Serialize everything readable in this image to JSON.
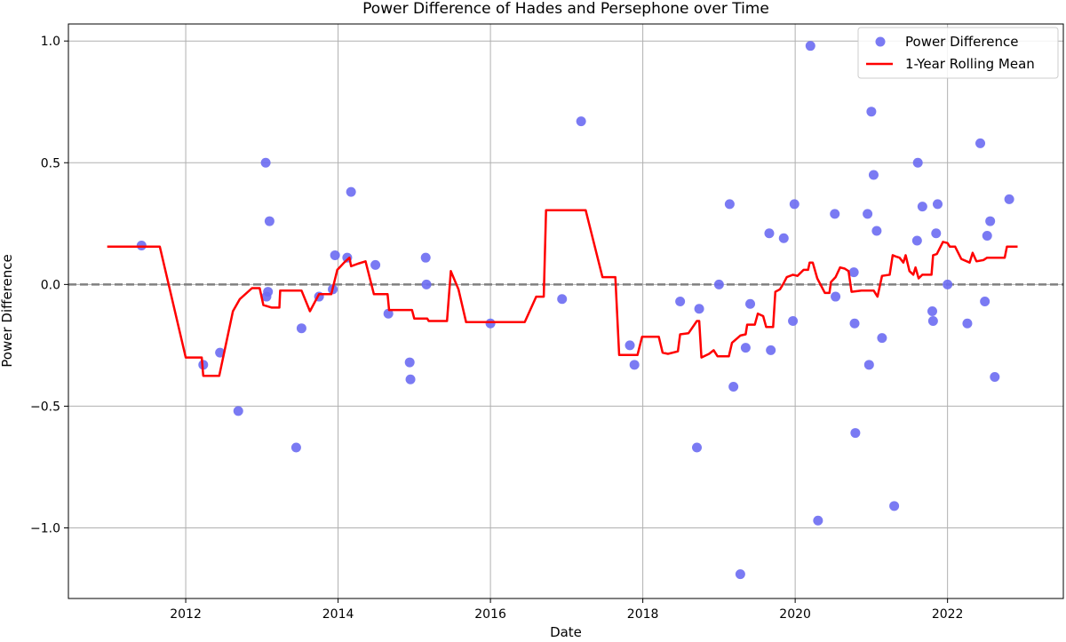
{
  "chart_data": {
    "type": "scatter",
    "title": "Power Difference of Hades and Persephone over Time",
    "xlabel": "Date",
    "ylabel": "Power Difference",
    "xlim": [
      2010.46,
      2023.52
    ],
    "ylim": [
      -1.29,
      1.07
    ],
    "x_ticks": [
      2012,
      2014,
      2016,
      2018,
      2020,
      2022
    ],
    "x_tick_labels": [
      "2012",
      "2014",
      "2016",
      "2018",
      "2020",
      "2022"
    ],
    "y_ticks": [
      -1.0,
      -0.5,
      0.0,
      0.5,
      1.0
    ],
    "y_tick_labels": [
      "−1.0",
      "−0.5",
      "0.0",
      "0.5",
      "1.0"
    ],
    "grid": true,
    "reference_line": {
      "y": 0.0,
      "style": "dashed",
      "color": "#808080"
    },
    "legend": {
      "placement": "top-right"
    },
    "series": [
      {
        "name": "Power Difference",
        "kind": "scatter",
        "color": "#6b6bf2",
        "points": [
          {
            "x": 2011.42,
            "y": 0.16
          },
          {
            "x": 2012.23,
            "y": -0.33
          },
          {
            "x": 2012.45,
            "y": -0.28
          },
          {
            "x": 2012.69,
            "y": -0.52
          },
          {
            "x": 2013.05,
            "y": 0.5
          },
          {
            "x": 2013.06,
            "y": -0.05
          },
          {
            "x": 2013.08,
            "y": -0.03
          },
          {
            "x": 2013.1,
            "y": 0.26
          },
          {
            "x": 2013.45,
            "y": -0.67
          },
          {
            "x": 2013.52,
            "y": -0.18
          },
          {
            "x": 2013.75,
            "y": -0.05
          },
          {
            "x": 2013.93,
            "y": -0.02
          },
          {
            "x": 2013.96,
            "y": 0.12
          },
          {
            "x": 2014.12,
            "y": 0.11
          },
          {
            "x": 2014.17,
            "y": 0.38
          },
          {
            "x": 2014.49,
            "y": 0.08
          },
          {
            "x": 2014.66,
            "y": -0.12
          },
          {
            "x": 2014.94,
            "y": -0.32
          },
          {
            "x": 2014.95,
            "y": -0.39
          },
          {
            "x": 2015.15,
            "y": 0.11
          },
          {
            "x": 2015.16,
            "y": 0.0
          },
          {
            "x": 2016.0,
            "y": -0.16
          },
          {
            "x": 2016.94,
            "y": -0.06
          },
          {
            "x": 2017.19,
            "y": 0.67
          },
          {
            "x": 2017.83,
            "y": -0.25
          },
          {
            "x": 2017.89,
            "y": -0.33
          },
          {
            "x": 2018.49,
            "y": -0.07
          },
          {
            "x": 2018.71,
            "y": -0.67
          },
          {
            "x": 2018.74,
            "y": -0.1
          },
          {
            "x": 2019.0,
            "y": 0.0
          },
          {
            "x": 2019.14,
            "y": 0.33
          },
          {
            "x": 2019.19,
            "y": -0.42
          },
          {
            "x": 2019.28,
            "y": -1.19
          },
          {
            "x": 2019.35,
            "y": -0.26
          },
          {
            "x": 2019.41,
            "y": -0.08
          },
          {
            "x": 2019.66,
            "y": 0.21
          },
          {
            "x": 2019.68,
            "y": -0.27
          },
          {
            "x": 2019.85,
            "y": 0.19
          },
          {
            "x": 2019.97,
            "y": -0.15
          },
          {
            "x": 2019.99,
            "y": 0.33
          },
          {
            "x": 2020.2,
            "y": 0.98
          },
          {
            "x": 2020.3,
            "y": -0.97
          },
          {
            "x": 2020.52,
            "y": 0.29
          },
          {
            "x": 2020.53,
            "y": -0.05
          },
          {
            "x": 2020.77,
            "y": 0.05
          },
          {
            "x": 2020.78,
            "y": -0.16
          },
          {
            "x": 2020.79,
            "y": -0.61
          },
          {
            "x": 2020.95,
            "y": 0.29
          },
          {
            "x": 2020.97,
            "y": -0.33
          },
          {
            "x": 2021.0,
            "y": 0.71
          },
          {
            "x": 2021.03,
            "y": 0.45
          },
          {
            "x": 2021.07,
            "y": 0.22
          },
          {
            "x": 2021.14,
            "y": -0.22
          },
          {
            "x": 2021.3,
            "y": -0.91
          },
          {
            "x": 2021.6,
            "y": 0.18
          },
          {
            "x": 2021.61,
            "y": 0.5
          },
          {
            "x": 2021.67,
            "y": 0.32
          },
          {
            "x": 2021.8,
            "y": -0.11
          },
          {
            "x": 2021.81,
            "y": -0.15
          },
          {
            "x": 2021.85,
            "y": 0.21
          },
          {
            "x": 2021.87,
            "y": 0.33
          },
          {
            "x": 2022.0,
            "y": 0.0
          },
          {
            "x": 2022.26,
            "y": -0.16
          },
          {
            "x": 2022.43,
            "y": 0.58
          },
          {
            "x": 2022.49,
            "y": -0.07
          },
          {
            "x": 2022.52,
            "y": 0.2
          },
          {
            "x": 2022.56,
            "y": 0.26
          },
          {
            "x": 2022.62,
            "y": -0.38
          },
          {
            "x": 2022.81,
            "y": 0.35
          }
        ]
      },
      {
        "name": "1-Year Rolling Mean",
        "kind": "line",
        "color": "#ff0000",
        "points": [
          {
            "x": 2010.97,
            "y": 0.155
          },
          {
            "x": 2011.66,
            "y": 0.155
          },
          {
            "x": 2012.0,
            "y": -0.3
          },
          {
            "x": 2012.21,
            "y": -0.3
          },
          {
            "x": 2012.23,
            "y": -0.375
          },
          {
            "x": 2012.44,
            "y": -0.375
          },
          {
            "x": 2012.62,
            "y": -0.11
          },
          {
            "x": 2012.71,
            "y": -0.06
          },
          {
            "x": 2012.87,
            "y": -0.015
          },
          {
            "x": 2012.97,
            "y": -0.015
          },
          {
            "x": 2013.02,
            "y": -0.085
          },
          {
            "x": 2013.13,
            "y": -0.095
          },
          {
            "x": 2013.23,
            "y": -0.095
          },
          {
            "x": 2013.24,
            "y": -0.025
          },
          {
            "x": 2013.52,
            "y": -0.025
          },
          {
            "x": 2013.63,
            "y": -0.11
          },
          {
            "x": 2013.75,
            "y": -0.04
          },
          {
            "x": 2013.91,
            "y": -0.04
          },
          {
            "x": 2013.99,
            "y": 0.06
          },
          {
            "x": 2014.08,
            "y": 0.09
          },
          {
            "x": 2014.15,
            "y": 0.11
          },
          {
            "x": 2014.17,
            "y": 0.075
          },
          {
            "x": 2014.26,
            "y": 0.085
          },
          {
            "x": 2014.36,
            "y": 0.095
          },
          {
            "x": 2014.47,
            "y": -0.04
          },
          {
            "x": 2014.65,
            "y": -0.04
          },
          {
            "x": 2014.67,
            "y": -0.105
          },
          {
            "x": 2014.97,
            "y": -0.105
          },
          {
            "x": 2015.0,
            "y": -0.14
          },
          {
            "x": 2015.17,
            "y": -0.14
          },
          {
            "x": 2015.19,
            "y": -0.15
          },
          {
            "x": 2015.43,
            "y": -0.15
          },
          {
            "x": 2015.48,
            "y": 0.055
          },
          {
            "x": 2015.58,
            "y": -0.02
          },
          {
            "x": 2015.68,
            "y": -0.155
          },
          {
            "x": 2016.45,
            "y": -0.155
          },
          {
            "x": 2016.6,
            "y": -0.05
          },
          {
            "x": 2016.7,
            "y": -0.05
          },
          {
            "x": 2016.73,
            "y": 0.305
          },
          {
            "x": 2017.25,
            "y": 0.305
          },
          {
            "x": 2017.47,
            "y": 0.03
          },
          {
            "x": 2017.64,
            "y": 0.03
          },
          {
            "x": 2017.69,
            "y": -0.29
          },
          {
            "x": 2017.93,
            "y": -0.29
          },
          {
            "x": 2017.99,
            "y": -0.215
          },
          {
            "x": 2018.21,
            "y": -0.215
          },
          {
            "x": 2018.26,
            "y": -0.28
          },
          {
            "x": 2018.33,
            "y": -0.285
          },
          {
            "x": 2018.46,
            "y": -0.275
          },
          {
            "x": 2018.49,
            "y": -0.205
          },
          {
            "x": 2018.6,
            "y": -0.2
          },
          {
            "x": 2018.71,
            "y": -0.15
          },
          {
            "x": 2018.74,
            "y": -0.15
          },
          {
            "x": 2018.77,
            "y": -0.3
          },
          {
            "x": 2018.87,
            "y": -0.285
          },
          {
            "x": 2018.93,
            "y": -0.27
          },
          {
            "x": 2018.98,
            "y": -0.295
          },
          {
            "x": 2019.13,
            "y": -0.295
          },
          {
            "x": 2019.17,
            "y": -0.24
          },
          {
            "x": 2019.28,
            "y": -0.21
          },
          {
            "x": 2019.35,
            "y": -0.205
          },
          {
            "x": 2019.37,
            "y": -0.165
          },
          {
            "x": 2019.47,
            "y": -0.165
          },
          {
            "x": 2019.51,
            "y": -0.12
          },
          {
            "x": 2019.58,
            "y": -0.13
          },
          {
            "x": 2019.62,
            "y": -0.175
          },
          {
            "x": 2019.71,
            "y": -0.175
          },
          {
            "x": 2019.74,
            "y": -0.03
          },
          {
            "x": 2019.8,
            "y": -0.02
          },
          {
            "x": 2019.84,
            "y": 0.0
          },
          {
            "x": 2019.89,
            "y": 0.03
          },
          {
            "x": 2019.97,
            "y": 0.04
          },
          {
            "x": 2020.03,
            "y": 0.035
          },
          {
            "x": 2020.11,
            "y": 0.06
          },
          {
            "x": 2020.17,
            "y": 0.06
          },
          {
            "x": 2020.19,
            "y": 0.09
          },
          {
            "x": 2020.23,
            "y": 0.09
          },
          {
            "x": 2020.29,
            "y": 0.025
          },
          {
            "x": 2020.39,
            "y": -0.035
          },
          {
            "x": 2020.45,
            "y": -0.035
          },
          {
            "x": 2020.47,
            "y": 0.01
          },
          {
            "x": 2020.53,
            "y": 0.03
          },
          {
            "x": 2020.59,
            "y": 0.07
          },
          {
            "x": 2020.65,
            "y": 0.065
          },
          {
            "x": 2020.7,
            "y": 0.055
          },
          {
            "x": 2020.74,
            "y": -0.03
          },
          {
            "x": 2020.87,
            "y": -0.025
          },
          {
            "x": 2021.03,
            "y": -0.025
          },
          {
            "x": 2021.08,
            "y": -0.05
          },
          {
            "x": 2021.14,
            "y": 0.035
          },
          {
            "x": 2021.24,
            "y": 0.04
          },
          {
            "x": 2021.28,
            "y": 0.12
          },
          {
            "x": 2021.32,
            "y": 0.115
          },
          {
            "x": 2021.37,
            "y": 0.11
          },
          {
            "x": 2021.42,
            "y": 0.09
          },
          {
            "x": 2021.45,
            "y": 0.12
          },
          {
            "x": 2021.5,
            "y": 0.055
          },
          {
            "x": 2021.55,
            "y": 0.04
          },
          {
            "x": 2021.58,
            "y": 0.07
          },
          {
            "x": 2021.62,
            "y": 0.025
          },
          {
            "x": 2021.67,
            "y": 0.04
          },
          {
            "x": 2021.79,
            "y": 0.04
          },
          {
            "x": 2021.81,
            "y": 0.12
          },
          {
            "x": 2021.86,
            "y": 0.125
          },
          {
            "x": 2021.94,
            "y": 0.175
          },
          {
            "x": 2022.0,
            "y": 0.17
          },
          {
            "x": 2022.03,
            "y": 0.155
          },
          {
            "x": 2022.1,
            "y": 0.155
          },
          {
            "x": 2022.18,
            "y": 0.105
          },
          {
            "x": 2022.29,
            "y": 0.09
          },
          {
            "x": 2022.33,
            "y": 0.13
          },
          {
            "x": 2022.38,
            "y": 0.095
          },
          {
            "x": 2022.47,
            "y": 0.1
          },
          {
            "x": 2022.52,
            "y": 0.11
          },
          {
            "x": 2022.63,
            "y": 0.11
          },
          {
            "x": 2022.75,
            "y": 0.11
          },
          {
            "x": 2022.78,
            "y": 0.155
          },
          {
            "x": 2022.92,
            "y": 0.155
          }
        ]
      }
    ]
  }
}
